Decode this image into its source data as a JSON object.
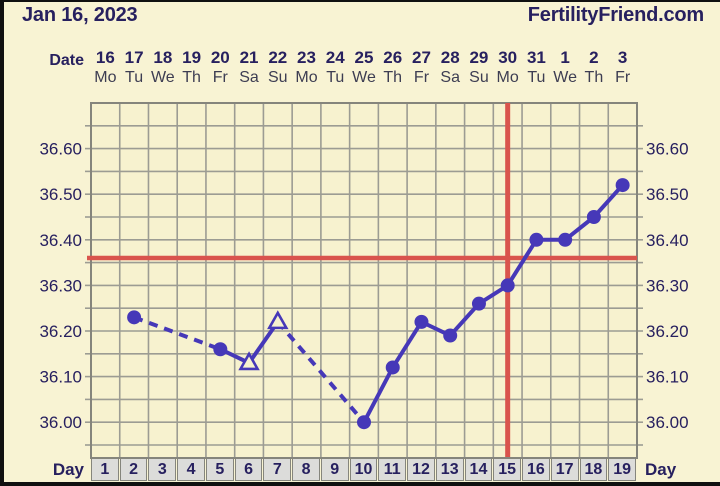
{
  "header": {
    "chart_date": "Jan 16, 2023",
    "brand": "FertilityFriend.com"
  },
  "date_header": {
    "label": "Date",
    "dates": [
      "16",
      "17",
      "18",
      "19",
      "20",
      "21",
      "22",
      "23",
      "24",
      "25",
      "26",
      "27",
      "28",
      "29",
      "30",
      "31",
      "1",
      "2",
      "3"
    ],
    "weekdays": [
      "Mo",
      "Tu",
      "We",
      "Th",
      "Fr",
      "Sa",
      "Su",
      "Mo",
      "Tu",
      "We",
      "Th",
      "Fr",
      "Sa",
      "Su",
      "Mo",
      "Tu",
      "We",
      "Th",
      "Fr"
    ]
  },
  "day_footer": {
    "label_left": "Day",
    "label_right": "Day",
    "days": [
      "1",
      "2",
      "3",
      "4",
      "5",
      "6",
      "7",
      "8",
      "9",
      "10",
      "11",
      "12",
      "13",
      "14",
      "15",
      "16",
      "17",
      "18",
      "19"
    ]
  },
  "y_axis": {
    "labels_left": [
      "36.60",
      "36.50",
      "36.40",
      "36.30",
      "36.20",
      "36.10",
      "36.00"
    ],
    "labels_right": [
      "36.60",
      "36.50",
      "36.40",
      "36.30",
      "36.20",
      "36.10",
      "36.00"
    ]
  },
  "chart_data": {
    "type": "line",
    "title": "",
    "x_unit": "cycle day",
    "x_range": [
      1,
      19
    ],
    "y_range": [
      35.925,
      36.7
    ],
    "y_gridline_step": 0.05,
    "y_labeled_ticks": [
      36.6,
      36.5,
      36.4,
      36.3,
      36.2,
      36.1,
      36.0
    ],
    "coverline_value": 36.36,
    "vertical_line_day": 15,
    "line_rule": "solid between consecutive days, dashed across day gaps",
    "points": [
      {
        "day": 2,
        "value": 36.23,
        "marker": "circle"
      },
      {
        "day": 5,
        "value": 36.16,
        "marker": "circle"
      },
      {
        "day": 6,
        "value": 36.13,
        "marker": "triangle-open"
      },
      {
        "day": 7,
        "value": 36.22,
        "marker": "triangle-open"
      },
      {
        "day": 10,
        "value": 36.0,
        "marker": "circle"
      },
      {
        "day": 11,
        "value": 36.12,
        "marker": "circle"
      },
      {
        "day": 12,
        "value": 36.22,
        "marker": "circle"
      },
      {
        "day": 13,
        "value": 36.19,
        "marker": "circle"
      },
      {
        "day": 14,
        "value": 36.26,
        "marker": "circle"
      },
      {
        "day": 15,
        "value": 36.3,
        "marker": "circle"
      },
      {
        "day": 16,
        "value": 36.4,
        "marker": "circle"
      },
      {
        "day": 17,
        "value": 36.4,
        "marker": "circle"
      },
      {
        "day": 18,
        "value": 36.45,
        "marker": "circle"
      },
      {
        "day": 19,
        "value": 36.52,
        "marker": "circle"
      }
    ]
  },
  "colors": {
    "background": "#f8f3d3",
    "plot_background": "#f7f2cf",
    "grid": "#9c9c93",
    "plot_border": "#85857c",
    "temperature": "#4638b8",
    "red_lines": "#d9544d",
    "text_navy": "#27205f",
    "weekday_text": "#3d3d52",
    "day_cell_bg": "#dcdcda",
    "frame_black": "#101010"
  }
}
